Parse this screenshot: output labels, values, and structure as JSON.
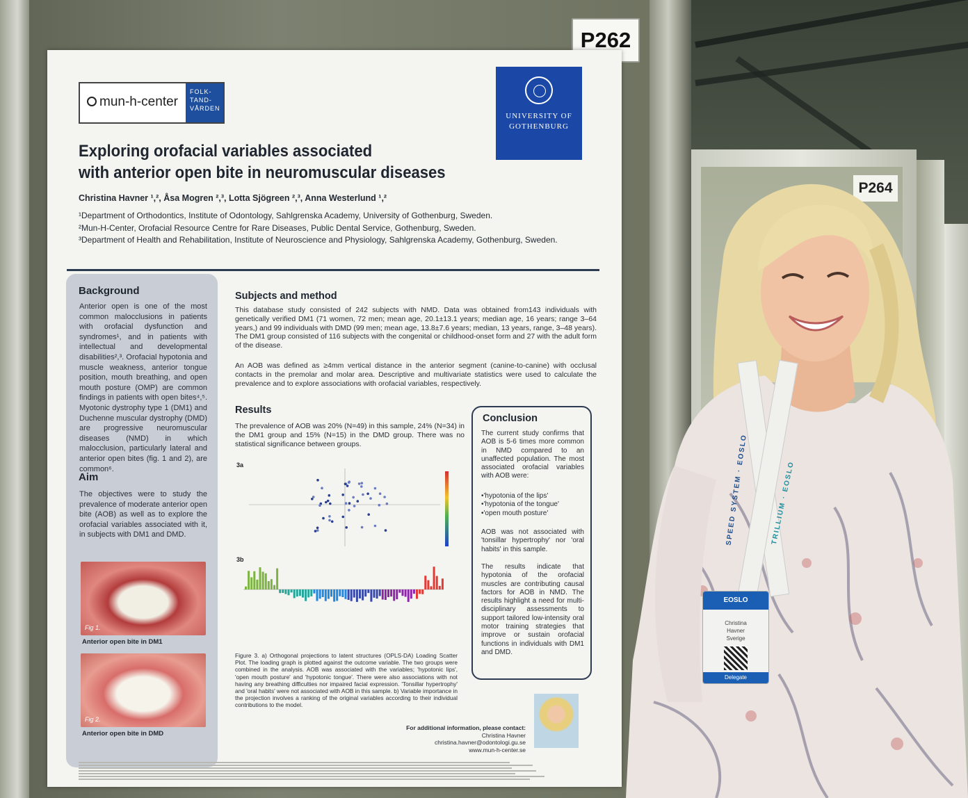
{
  "booth": {
    "main_label": "P262",
    "side_label": "P264"
  },
  "poster": {
    "logo_left": {
      "name": "mun-h-center",
      "side_text": "FOLK-\nTAND-\nVÅRDEN"
    },
    "logo_right": {
      "name": "UNIVERSITY OF GOTHENBURG"
    },
    "title_line1": "Exploring orofacial variables associated",
    "title_line2": "with anterior open bite in neuromuscular diseases",
    "authors": "Christina Havner ¹,², Åsa Mogren ²,³, Lotta Sjögreen ²,³, Anna Westerlund ¹,²",
    "affiliations": [
      "¹Department of Orthodontics, Institute of Odontology, Sahlgrenska Academy, University of Gothenburg, Sweden.",
      "²Mun-H-Center, Orofacial Resource Centre for Rare Diseases, Public Dental Service, Gothenburg, Sweden.",
      "³Department of Health and Rehabilitation, Institute of Neuroscience and Physiology, Sahlgrenska Academy, Gothenburg, Sweden."
    ],
    "background_heading": "Background",
    "background_text": "Anterior open is one of the most common malocclusions in patients with orofacial dysfunction and syndromes¹, and in patients with intellectual and developmental disabilities²,³. Orofacial hypotonia and muscle weakness, anterior tongue position, mouth breathing, and open mouth posture (OMP) are common findings in patients with open bites⁴,⁵. Myotonic dystrophy type 1 (DM1) and Duchenne muscular dystrophy (DMD) are progressive neuromuscular diseases (NMD) in which malocclusion, particularly lateral and anterior open bites (fig. 1 and 2), are common⁶.",
    "aim_heading": "Aim",
    "aim_text": "The objectives were to study the prevalence of moderate anterior open bite (AOB) as well as to explore the orofacial variables associated with it, in subjects with DM1 and DMD.",
    "fig1_tag": "Fig 1.",
    "fig1_caption": "Anterior open bite in DM1",
    "fig2_tag": "Fig 2.",
    "fig2_caption": "Anterior open bite in DMD",
    "methods_heading": "Subjects and method",
    "methods_p1": "This database study consisted of 242 subjects with NMD. Data was obtained from143 individuals with genetically verified DM1 (71 women, 72 men; mean age, 20.1±13.1 years; median age, 16 years; range 3–64 years,) and 99 individuals with DMD (99 men; mean age, 13.8±7.6 years; median, 13 years, range, 3–48 years). The DM1 group consisted of 116 subjects with the congenital or childhood-onset form and 27 with the adult form of the disease.",
    "methods_p2": "An AOB was defined as ≥4mm vertical distance in the anterior segment (canine-to-canine) with occlusal contacts in the premolar and molar area. Descriptive and multivariate statistics were used to calculate the prevalence and to explore associations with orofacial variables, respectively.",
    "results_heading": "Results",
    "results_text": "The prevalence of AOB was 20% (N=49) in this sample, 24% (N=34) in the DM1 group and 15% (N=15) in the DMD group. There was no statistical significance between groups.",
    "chart_a_label": "3a",
    "chart_b_label": "3b",
    "figure_caption": "Figure 3. a) Orthogonal projections to latent structures (OPLS-DA) Loading Scatter Plot. The loading graph is plotted against the outcome variable. The two groups were combined in the analysis. AOB was associated with the variables; 'hypotonic lips', 'open mouth posture' and 'hypotonic tongue'. There were also associations with not having any breathing difficulties nor impaired facial expression. 'Tonsillar hypertrophy' and 'oral habits' were not associated with AOB in this sample. b) Variable importance in the projection involves a ranking of the original variables according to their individual contributions to the model.",
    "conclusion_heading": "Conclusion",
    "conclusion_p1": "The current study confirms that AOB is 5-6 times more common in NMD compared to an unaffected population. The most associated orofacial variables with AOB were:",
    "conclusion_list": [
      "•'hypotonia of the lips'",
      "•'hypotonia of the tongue'",
      "•'open mouth posture'"
    ],
    "conclusion_p2": "AOB was not associated with 'tonsillar hypertrophy' nor 'oral habits' in this sample.",
    "conclusion_p3": "The results indicate that hypotonia of the orofacial muscles are contributing causal factors for AOB in NMD. The results highlight a need for multi-disciplinary assessments to support tailored low-intensity oral motor training strategies that improve or sustain orofacial functions in individuals with DM1 and DMD.",
    "contact_line1": "For additional information, please contact:",
    "contact_name": "Christina Havner",
    "contact_email": "christina.havner@odontologi.gu.se",
    "contact_web": "www.mun-h-center.se"
  },
  "name_badge": {
    "event": "EOSLO",
    "lines": [
      "Christina",
      "Havner",
      "Sverige"
    ],
    "role": "Delegate"
  },
  "lanyard": {
    "text_left": "SPEED SYSTEM · EOSLO",
    "text_right": "TRILLIUM · EOSLO"
  },
  "colors": {
    "poster_navy": "#2c3a52",
    "uni_blue": "#1b48a6",
    "badge_blue": "#1a5fb4"
  }
}
